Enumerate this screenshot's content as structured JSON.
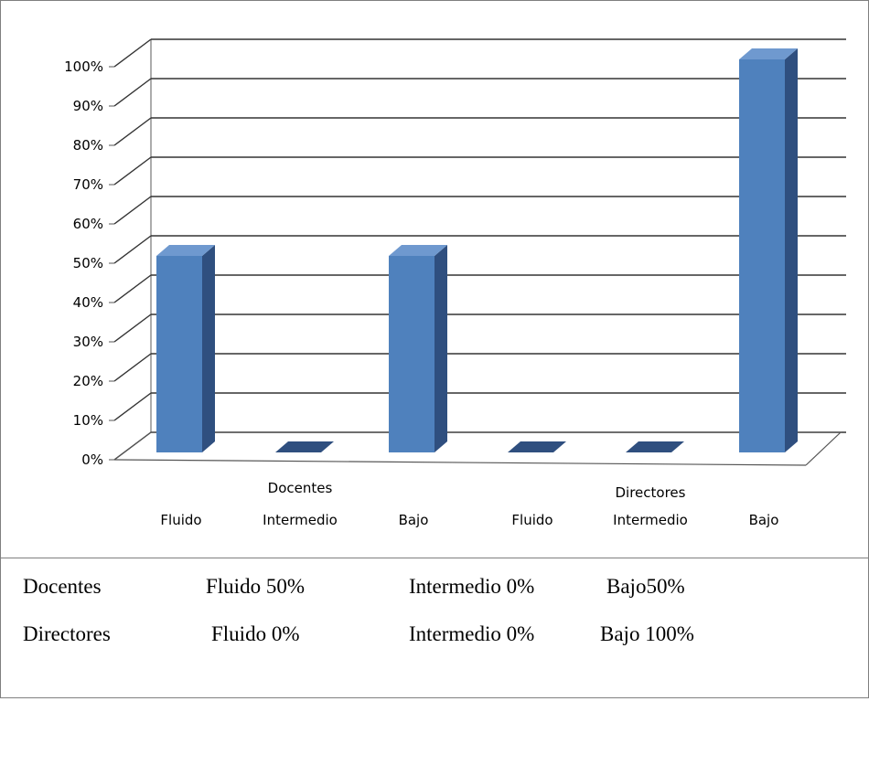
{
  "chart_data": {
    "type": "bar",
    "groups": [
      {
        "name": "Docentes",
        "categories": [
          "Fluido",
          "Intermedio",
          "Bajo"
        ],
        "values": [
          50,
          0,
          50
        ]
      },
      {
        "name": "Directores",
        "categories": [
          "Fluido",
          "Intermedio",
          "Bajo"
        ],
        "values": [
          0,
          0,
          100
        ]
      }
    ],
    "yticks": [
      "0%",
      "10%",
      "20%",
      "30%",
      "40%",
      "50%",
      "60%",
      "70%",
      "80%",
      "90%",
      "100%"
    ],
    "ylim": [
      0,
      100
    ],
    "grid": true,
    "bar_color": "#4f81bd",
    "bar_side_color": "#2f4f7f",
    "bar_top_color": "#6f99cf"
  },
  "summary": {
    "row1": {
      "group": "Docentes",
      "fluido": "Fluido    50%",
      "intermedio": "Intermedio 0%",
      "bajo": "Bajo50%"
    },
    "row2": {
      "group": "Directores",
      "fluido": "Fluido  0%",
      "intermedio": "Intermedio 0%",
      "bajo": "Bajo 100%"
    }
  }
}
